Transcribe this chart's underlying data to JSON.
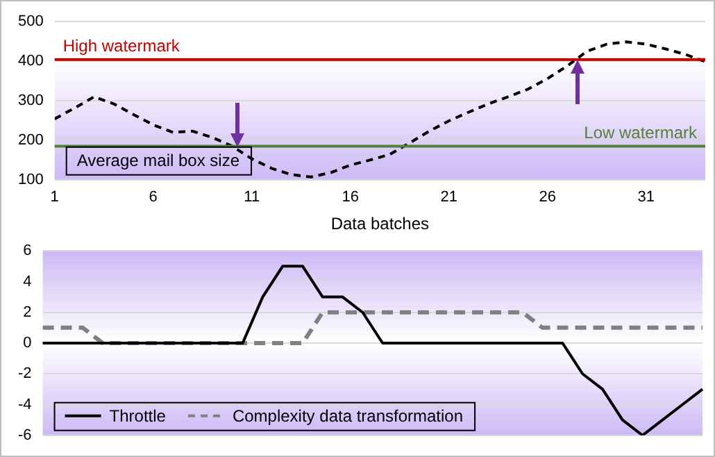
{
  "chart_data": [
    {
      "type": "line",
      "xlabel": "Data batches",
      "x": [
        1,
        2,
        3,
        4,
        5,
        6,
        7,
        8,
        9,
        10,
        11,
        12,
        13,
        14,
        15,
        16,
        17,
        18,
        19,
        20,
        21,
        22,
        23,
        24,
        25,
        26,
        27,
        28,
        29,
        30,
        31,
        32,
        33,
        34
      ],
      "xlim": [
        1,
        34
      ],
      "xticks": [
        1,
        6,
        11,
        16,
        21,
        26,
        31
      ],
      "series": [
        {
          "name": "Average mail box size",
          "color": "#000000",
          "line_style": "dashed",
          "values": [
            254,
            281,
            310,
            292,
            265,
            239,
            220,
            223,
            207,
            185,
            153,
            129,
            113,
            107,
            118,
            137,
            150,
            164,
            193,
            223,
            249,
            271,
            292,
            310,
            329,
            356,
            388,
            425,
            443,
            449,
            443,
            431,
            417,
            399
          ]
        }
      ],
      "ylim": [
        100,
        500
      ],
      "yticks": [
        100,
        200,
        300,
        400,
        500
      ],
      "grid": "y",
      "legend": "bottom left",
      "marker": "none",
      "ref_lines": [
        {
          "axis": "y",
          "value": 404,
          "label": "High watermark",
          "color": "#c00000"
        },
        {
          "axis": "y",
          "value": 185,
          "label": "Low watermark",
          "color": "#548235"
        }
      ]
    },
    {
      "type": "line",
      "categories": [
        null,
        null,
        null,
        null,
        null,
        null,
        null,
        null,
        null,
        null,
        null,
        null,
        null,
        null,
        null,
        null,
        null,
        null,
        null,
        null,
        null,
        null,
        null,
        null,
        null,
        null,
        null,
        null,
        null,
        null,
        null,
        null,
        null,
        null
      ],
      "series": [
        {
          "name": "Throttle",
          "color": "#000000",
          "line_style": "solid",
          "values": [
            0,
            0,
            0,
            0,
            0,
            0,
            0,
            0,
            0,
            0,
            0,
            3,
            5,
            5,
            3,
            3,
            2,
            0,
            0,
            0,
            0,
            0,
            0,
            0,
            0,
            0,
            0,
            -2,
            -3,
            -5,
            -6,
            -5,
            -4,
            -3
          ]
        },
        {
          "name": "Complexity data transformation",
          "color": "#808080",
          "line_style": "dashed",
          "values": [
            1,
            1,
            1,
            0,
            0,
            0,
            0,
            0,
            0,
            0,
            0,
            0,
            0,
            0,
            2,
            2,
            2,
            2,
            2,
            2,
            2,
            2,
            2,
            2,
            2,
            1,
            1,
            1,
            1,
            1,
            1,
            1,
            1,
            1
          ]
        }
      ],
      "ylim": [
        -6,
        6
      ],
      "yticks": [
        -6,
        -4,
        -2,
        0,
        2,
        4,
        6
      ],
      "grid": "y",
      "legend": "bottom left",
      "marker": "none",
      "tick_labels": "y"
    }
  ]
}
